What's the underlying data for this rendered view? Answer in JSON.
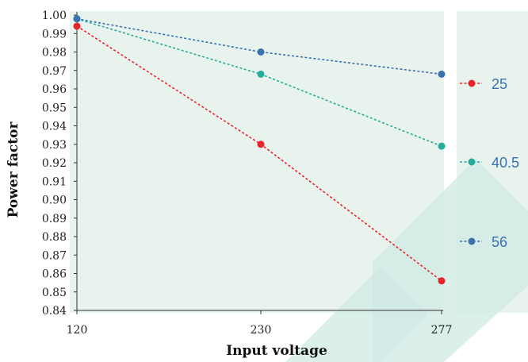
{
  "chart_data": {
    "type": "line",
    "xlabel": "Input voltage",
    "ylabel": "Power factor",
    "categories": [
      "120",
      "230",
      "277"
    ],
    "ylim": [
      0.84,
      1.0
    ],
    "yticks": [
      "0.84",
      "0.85",
      "0.86",
      "0.87",
      "0.88",
      "0.89",
      "0.90",
      "0.91",
      "0.92",
      "0.93",
      "0.94",
      "0.95",
      "0.96",
      "0.97",
      "0.98",
      "0.99",
      "1.00"
    ],
    "grid": false,
    "legend_position": "right",
    "series": [
      {
        "name": "25",
        "values": [
          0.994,
          0.93,
          0.856
        ],
        "color": "#e8242a"
      },
      {
        "name": "40.5",
        "values": [
          0.998,
          0.968,
          0.929
        ],
        "color": "#26ab9c"
      },
      {
        "name": "56",
        "values": [
          0.998,
          0.98,
          0.968
        ],
        "color": "#3a71b0"
      }
    ]
  },
  "colors": {
    "plot_background": "#e9f3ee",
    "watermark": "#cfe9e4"
  }
}
